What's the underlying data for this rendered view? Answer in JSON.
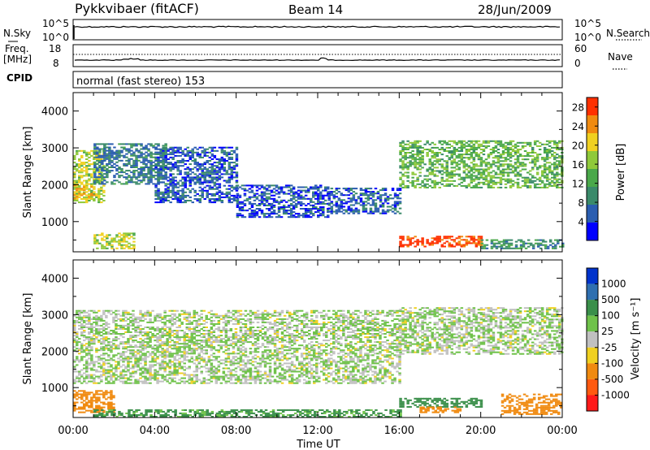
{
  "header": {
    "station": "Pykkvibaer (fitACF)",
    "beam": "Beam 14",
    "date": "28/Jun/2009"
  },
  "nsky_panel": {
    "left_label": "N.Sky",
    "right_label": "N.Search",
    "left_ticks": [
      "10^5",
      "10^0"
    ],
    "right_ticks": [
      "10^5",
      "10^0"
    ]
  },
  "freq_panel": {
    "left_label_line1": "Freq.",
    "left_label_line2": "[MHz]",
    "right_label": "Nave",
    "left_ticks": [
      "18",
      "8"
    ],
    "right_ticks": [
      "60",
      "0"
    ]
  },
  "cpid_panel": {
    "label": "CPID",
    "text": "normal (fast stereo) 153"
  },
  "colors": {
    "frame": "#000000",
    "power_scale": [
      "#0000ff",
      "#2a5db0",
      "#3a8a6a",
      "#4aa84a",
      "#8fc93a",
      "#f0d020",
      "#f08a10",
      "#ff3000"
    ],
    "velocity_scale": [
      "#0033cc",
      "#2f6fb0",
      "#3a8f4a",
      "#6fc24a",
      "#c0c0c0",
      "#f0d020",
      "#f08a10",
      "#ff5a10",
      "#ff1a1a"
    ]
  },
  "chart_data": [
    {
      "type": "heatmap",
      "title": "",
      "xlabel": "",
      "ylabel": "Slant Range [km]",
      "x_tick_labels": [
        "00:00",
        "04:00",
        "08:00",
        "12:00",
        "16:00",
        "20:00",
        "00:00"
      ],
      "y_ticks": [
        1000,
        2000,
        3000,
        4000
      ],
      "ylim": [
        180,
        4500
      ],
      "xlim_hours": [
        0,
        24
      ],
      "colorbar": {
        "label": "Power [dB]",
        "ticks": [
          4,
          8,
          12,
          16,
          20,
          24,
          28
        ],
        "range": [
          0,
          30
        ]
      },
      "echo_regions": [
        {
          "t_start": 0.0,
          "t_end": 1.5,
          "range_lo": 1500,
          "range_hi": 2900,
          "value": 18
        },
        {
          "t_start": 0.0,
          "t_end": 1.0,
          "range_lo": 1600,
          "range_hi": 2000,
          "value": 22
        },
        {
          "t_start": 1.0,
          "t_end": 4.5,
          "range_lo": 2000,
          "range_hi": 3100,
          "value": 8
        },
        {
          "t_start": 4.0,
          "t_end": 8.0,
          "range_lo": 1500,
          "range_hi": 3000,
          "value": 6
        },
        {
          "t_start": 8.0,
          "t_end": 12.5,
          "range_lo": 1100,
          "range_hi": 2000,
          "value": 5
        },
        {
          "t_start": 12.5,
          "t_end": 16.0,
          "range_lo": 1200,
          "range_hi": 1900,
          "value": 6
        },
        {
          "t_start": 16.0,
          "t_end": 24.0,
          "range_lo": 1900,
          "range_hi": 3200,
          "value": 14
        },
        {
          "t_start": 1.0,
          "t_end": 3.0,
          "range_lo": 250,
          "range_hi": 700,
          "value": 18
        },
        {
          "t_start": 16.0,
          "t_end": 20.0,
          "range_lo": 300,
          "range_hi": 600,
          "value": 28
        },
        {
          "t_start": 20.0,
          "t_end": 24.0,
          "range_lo": 250,
          "range_hi": 500,
          "value": 10
        }
      ]
    },
    {
      "type": "heatmap",
      "title": "",
      "xlabel": "Time UT",
      "ylabel": "Slant Range [km]",
      "x_tick_labels": [
        "00:00",
        "04:00",
        "08:00",
        "12:00",
        "16:00",
        "20:00",
        "00:00"
      ],
      "y_ticks": [
        1000,
        2000,
        3000,
        4000
      ],
      "ylim": [
        180,
        4500
      ],
      "xlim_hours": [
        0,
        24
      ],
      "colorbar": {
        "label": "Velocity [m s⁻¹]",
        "ticks": [
          1000,
          500,
          100,
          25,
          -25,
          -100,
          -500,
          -1000
        ]
      },
      "echo_regions": [
        {
          "t_start": 0.0,
          "t_end": 16.0,
          "range_lo": 1100,
          "range_hi": 3100,
          "value": 0
        },
        {
          "t_start": 16.0,
          "t_end": 24.0,
          "range_lo": 1900,
          "range_hi": 3200,
          "value": 0
        },
        {
          "t_start": 0.0,
          "t_end": 2.0,
          "range_lo": 300,
          "range_hi": 900,
          "value": -150
        },
        {
          "t_start": 1.0,
          "t_end": 16.0,
          "range_lo": 180,
          "range_hi": 400,
          "value": 80
        },
        {
          "t_start": 16.0,
          "t_end": 20.0,
          "range_lo": 450,
          "range_hi": 700,
          "value": 150
        },
        {
          "t_start": 17.0,
          "t_end": 19.0,
          "range_lo": 300,
          "range_hi": 450,
          "value": -150
        },
        {
          "t_start": 21.0,
          "t_end": 24.0,
          "range_lo": 250,
          "range_hi": 800,
          "value": -200
        }
      ]
    }
  ]
}
